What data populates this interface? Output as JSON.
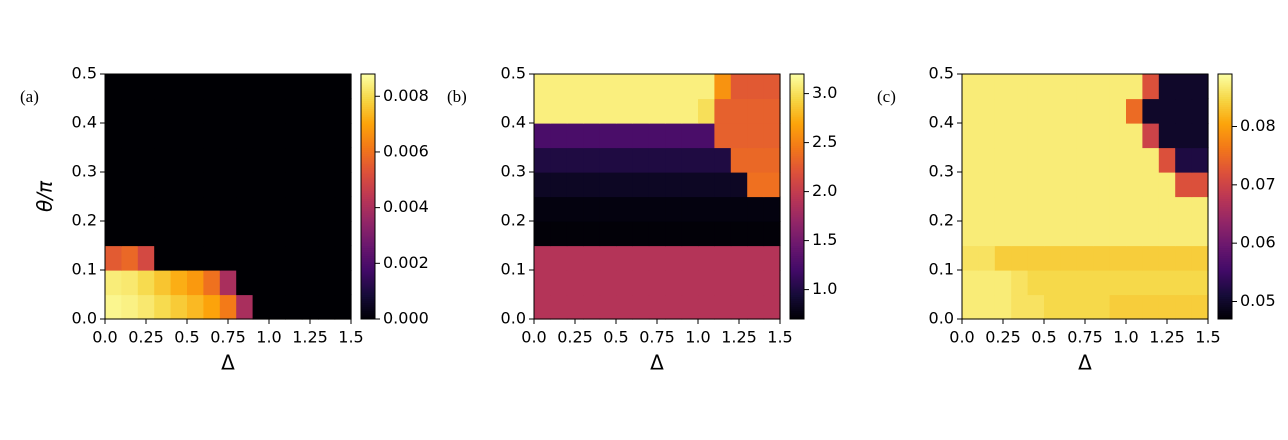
{
  "chart_data": [
    {
      "type": "heatmap",
      "label": "(a)",
      "xlabel": "Δ",
      "ylabel": "θ/π",
      "colormap": "inferno",
      "xlim": [
        0,
        1.5
      ],
      "ylim": [
        0,
        0.5
      ],
      "xticks": [
        {
          "value": 0,
          "label": "0.0"
        },
        0.25,
        0.5,
        0.75,
        {
          "value": 1,
          "label": "1.0"
        },
        1.25,
        1.5
      ],
      "yticks": [
        {
          "value": 0,
          "label": "0.0"
        },
        0.1,
        0.2,
        0.3,
        0.4,
        0.5
      ],
      "clim": [
        0,
        0.0088
      ],
      "cticks": [
        {
          "value": 0,
          "label": "0.000"
        },
        0.002,
        0.004,
        0.006,
        0.008
      ],
      "z": [
        [
          0.0086,
          0.0085,
          0.0083,
          0.008,
          0.0077,
          0.0074,
          0.007,
          0.0062,
          0.004,
          0,
          0,
          0,
          0,
          0,
          0
        ],
        [
          0.0084,
          0.0083,
          0.008,
          0.0076,
          0.0072,
          0.0068,
          0.006,
          0.004,
          0,
          0,
          0,
          0,
          0,
          0,
          0
        ],
        [
          0.0055,
          0.0058,
          0.005,
          0,
          0,
          0,
          0,
          0,
          0,
          0,
          0,
          0,
          0,
          0,
          0
        ],
        [
          0,
          0,
          0,
          0,
          0,
          0,
          0,
          0,
          0,
          0,
          0,
          0,
          0,
          0,
          0
        ],
        [
          0,
          0,
          0,
          0,
          0,
          0,
          0,
          0,
          0,
          0,
          0,
          0,
          0,
          0,
          0
        ],
        [
          0,
          0,
          0,
          0,
          0,
          0,
          0,
          0,
          0,
          0,
          0,
          0,
          0,
          0,
          0
        ],
        [
          0,
          0,
          0,
          0,
          0,
          0,
          0,
          0,
          0,
          0,
          0,
          0,
          0,
          0,
          0
        ],
        [
          0,
          0,
          0,
          0,
          0,
          0,
          0,
          0,
          0,
          0,
          0,
          0,
          0,
          0,
          0
        ],
        [
          0,
          0,
          0,
          0,
          0,
          0,
          0,
          0,
          0,
          0,
          0,
          0,
          0,
          0,
          0
        ],
        [
          0,
          0,
          0,
          0,
          0,
          0,
          0,
          0,
          0,
          0,
          0,
          0,
          0,
          0,
          0
        ]
      ]
    },
    {
      "type": "heatmap",
      "label": "(b)",
      "xlabel": "Δ",
      "colormap": "inferno",
      "xlim": [
        0,
        1.5
      ],
      "ylim": [
        0,
        0.5
      ],
      "xticks": [
        {
          "value": 0,
          "label": "0.0"
        },
        0.25,
        0.5,
        0.75,
        {
          "value": 1,
          "label": "1.0"
        },
        1.25,
        1.5
      ],
      "yticks": [
        {
          "value": 0,
          "label": "0.0"
        },
        0.1,
        0.2,
        0.3,
        0.4,
        0.5
      ],
      "clim": [
        0.7,
        3.2
      ],
      "cticks": [
        {
          "value": 1,
          "label": "1.0"
        },
        1.5,
        {
          "value": 2,
          "label": "2.0"
        },
        2.5,
        {
          "value": 3,
          "label": "3.0"
        }
      ],
      "z": [
        [
          1.9,
          1.9,
          1.9,
          1.9,
          1.9,
          1.9,
          1.9,
          1.9,
          1.9,
          1.9,
          1.9,
          1.9,
          1.9,
          1.9,
          1.9
        ],
        [
          1.9,
          1.9,
          1.9,
          1.9,
          1.9,
          1.9,
          1.9,
          1.9,
          1.9,
          1.9,
          1.9,
          1.9,
          1.9,
          1.9,
          1.9
        ],
        [
          1.9,
          1.9,
          1.9,
          1.9,
          1.9,
          1.9,
          1.9,
          1.9,
          1.9,
          1.9,
          1.9,
          1.9,
          1.9,
          1.9,
          1.9
        ],
        [
          0.72,
          0.72,
          0.72,
          0.72,
          0.72,
          0.72,
          0.72,
          0.72,
          0.72,
          0.72,
          0.72,
          0.72,
          0.72,
          0.72,
          0.72
        ],
        [
          0.75,
          0.75,
          0.75,
          0.75,
          0.75,
          0.75,
          0.75,
          0.75,
          0.75,
          0.75,
          0.75,
          0.75,
          0.75,
          0.75,
          0.75
        ],
        [
          0.85,
          0.85,
          0.85,
          0.85,
          0.85,
          0.85,
          0.85,
          0.85,
          0.85,
          0.85,
          0.85,
          0.85,
          0.85,
          2.4,
          2.4
        ],
        [
          1.0,
          1.0,
          1.0,
          1.0,
          1.0,
          1.0,
          1.0,
          1.0,
          1.0,
          1.0,
          1.0,
          1.0,
          2.35,
          2.35,
          2.35
        ],
        [
          1.25,
          1.25,
          1.25,
          1.25,
          1.25,
          1.25,
          1.25,
          1.25,
          1.25,
          1.25,
          1.25,
          2.3,
          2.3,
          2.3,
          2.3
        ],
        [
          3.1,
          3.1,
          3.1,
          3.1,
          3.1,
          3.1,
          3.1,
          3.1,
          3.1,
          3.1,
          3.0,
          2.3,
          2.3,
          2.3,
          2.3
        ],
        [
          3.1,
          3.1,
          3.1,
          3.1,
          3.1,
          3.1,
          3.1,
          3.1,
          3.1,
          3.1,
          3.1,
          2.6,
          2.25,
          2.25,
          2.25
        ]
      ]
    },
    {
      "type": "heatmap",
      "label": "(c)",
      "xlabel": "Δ",
      "colormap": "inferno",
      "xlim": [
        0,
        1.5
      ],
      "ylim": [
        0,
        0.5
      ],
      "xticks": [
        {
          "value": 0,
          "label": "0.0"
        },
        0.25,
        0.5,
        0.75,
        {
          "value": 1,
          "label": "1.0"
        },
        1.25,
        1.5
      ],
      "yticks": [
        {
          "value": 0,
          "label": "0.0"
        },
        0.1,
        0.2,
        0.3,
        0.4,
        0.5
      ],
      "clim": [
        0.047,
        0.089
      ],
      "cticks": [
        0.05,
        0.06,
        0.07,
        0.08
      ],
      "z": [
        [
          0.087,
          0.087,
          0.087,
          0.086,
          0.086,
          0.085,
          0.085,
          0.085,
          0.085,
          0.084,
          0.084,
          0.084,
          0.084,
          0.084,
          0.084
        ],
        [
          0.087,
          0.087,
          0.087,
          0.086,
          0.085,
          0.085,
          0.085,
          0.085,
          0.085,
          0.085,
          0.085,
          0.085,
          0.085,
          0.085,
          0.085
        ],
        [
          0.086,
          0.086,
          0.084,
          0.084,
          0.084,
          0.084,
          0.084,
          0.084,
          0.084,
          0.084,
          0.084,
          0.084,
          0.084,
          0.084,
          0.084
        ],
        [
          0.087,
          0.087,
          0.087,
          0.087,
          0.087,
          0.087,
          0.087,
          0.087,
          0.087,
          0.087,
          0.087,
          0.087,
          0.087,
          0.087,
          0.087
        ],
        [
          0.087,
          0.087,
          0.087,
          0.087,
          0.087,
          0.087,
          0.087,
          0.087,
          0.087,
          0.087,
          0.087,
          0.087,
          0.087,
          0.087,
          0.087
        ],
        [
          0.087,
          0.087,
          0.087,
          0.087,
          0.087,
          0.087,
          0.087,
          0.087,
          0.087,
          0.087,
          0.087,
          0.087,
          0.087,
          0.072,
          0.072
        ],
        [
          0.087,
          0.087,
          0.087,
          0.087,
          0.087,
          0.087,
          0.087,
          0.087,
          0.087,
          0.087,
          0.087,
          0.087,
          0.072,
          0.052,
          0.052
        ],
        [
          0.087,
          0.087,
          0.087,
          0.087,
          0.087,
          0.087,
          0.087,
          0.087,
          0.087,
          0.087,
          0.087,
          0.07,
          0.05,
          0.05,
          0.05
        ],
        [
          0.087,
          0.087,
          0.087,
          0.087,
          0.087,
          0.087,
          0.087,
          0.087,
          0.087,
          0.087,
          0.075,
          0.05,
          0.05,
          0.05,
          0.05
        ],
        [
          0.087,
          0.087,
          0.087,
          0.087,
          0.087,
          0.087,
          0.087,
          0.087,
          0.087,
          0.087,
          0.087,
          0.072,
          0.05,
          0.05,
          0.05
        ]
      ]
    }
  ]
}
